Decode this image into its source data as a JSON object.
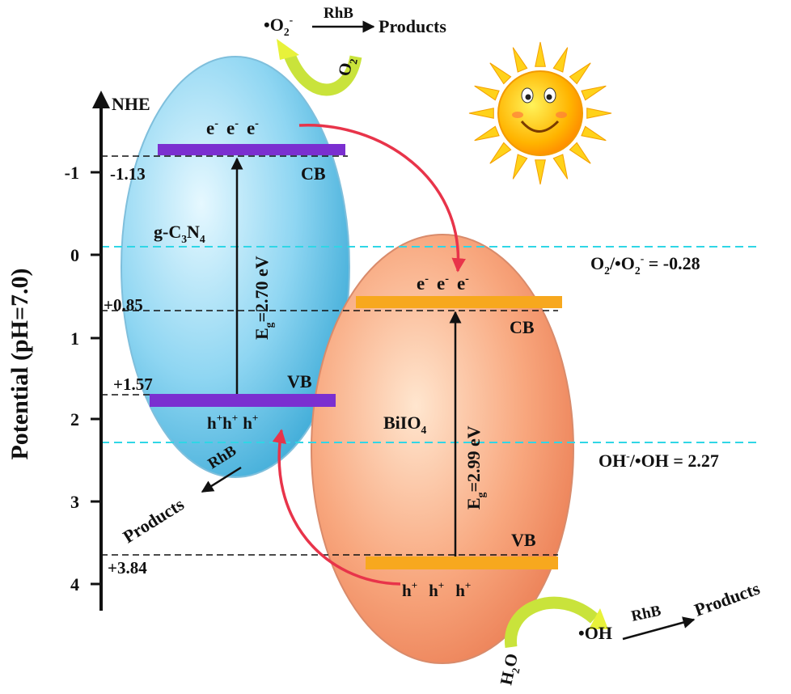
{
  "axis": {
    "title": "NHE",
    "label": "Potential (pH=7.0)",
    "ticks": [
      "-1",
      "0",
      "1",
      "2",
      "3",
      "4"
    ]
  },
  "g_c3n4": {
    "name": [
      "g-C",
      "3",
      "N",
      "4"
    ],
    "cb_potential": "-1.13",
    "vb_potential": "+1.57",
    "cb": "CB",
    "vb": "VB",
    "electrons": [
      "e",
      "-",
      "e",
      "-",
      "e",
      "-"
    ],
    "holes": [
      "h",
      "+",
      "h",
      "+",
      "h",
      "+"
    ],
    "band_gap": [
      "E",
      "g",
      "=2.70 eV"
    ]
  },
  "biio4": {
    "name": [
      "BiIO",
      "4"
    ],
    "cb_potential": "+0.85",
    "vb_potential": "+3.84",
    "cb": "CB",
    "vb": "VB",
    "electrons": [
      "e",
      "-",
      "e",
      "-",
      "e",
      "-"
    ],
    "holes": [
      "h",
      "+",
      "h",
      "+",
      "h",
      "+"
    ],
    "band_gap": [
      "E",
      "g",
      "=2.99 eV"
    ]
  },
  "references": {
    "o2": [
      "O",
      "2",
      "/•O",
      "2",
      "-",
      " = -0.28"
    ],
    "oh": [
      "OH",
      "-",
      "/•OH = 2.27"
    ]
  },
  "reactions": {
    "superoxide": {
      "species": [
        "•O",
        "2",
        "-"
      ],
      "reagent": "RhB",
      "product": "Products",
      "oxidant": [
        "O",
        "2"
      ]
    },
    "hole": {
      "reagent": "RhB",
      "product": "Products"
    },
    "hydroxyl": {
      "source": [
        "H",
        "2",
        "O"
      ],
      "species": "•OH",
      "reagent": "RhB",
      "product": "Products"
    }
  }
}
